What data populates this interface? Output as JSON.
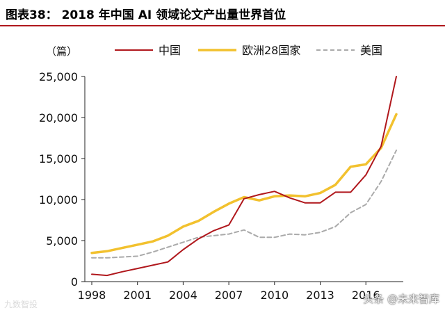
{
  "header": {
    "title": "图表38：   2018 年中国 AI 领域论文产出量世界首位"
  },
  "chart_data": {
    "type": "line",
    "title": "2018 年中国 AI 领域论文产出量世界首位",
    "ylabel": "（篇）",
    "xlabel": "",
    "ylim": [
      0,
      25000
    ],
    "xlim": [
      1998,
      2018
    ],
    "grid": false,
    "legend_position": "top",
    "yticks": [
      0,
      5000,
      10000,
      15000,
      20000,
      25000
    ],
    "ytick_labels": [
      "0",
      "5,000",
      "10,000",
      "15,000",
      "20,000",
      "25,000"
    ],
    "xticks": [
      1998,
      2001,
      2004,
      2007,
      2010,
      2013,
      2016
    ],
    "xtick_labels": [
      "1998",
      "2001",
      "2004",
      "2007",
      "2010",
      "2013",
      "2016"
    ],
    "x": [
      1998,
      1999,
      2000,
      2001,
      2002,
      2003,
      2004,
      2005,
      2006,
      2007,
      2008,
      2009,
      2010,
      2011,
      2012,
      2013,
      2014,
      2015,
      2016,
      2017,
      2018
    ],
    "series": [
      {
        "name": "中国",
        "color": "#b0171c",
        "style": "solid",
        "values": [
          900,
          750,
          1200,
          1600,
          2000,
          2400,
          3900,
          5200,
          6200,
          6900,
          10100,
          10600,
          11000,
          10200,
          9600,
          9600,
          10900,
          10900,
          13000,
          16500,
          25000
        ]
      },
      {
        "name": "欧洲28国家",
        "color": "#f2c12e",
        "style": "solid",
        "values": [
          3500,
          3700,
          4100,
          4500,
          4900,
          5600,
          6700,
          7400,
          8500,
          9500,
          10300,
          9900,
          10400,
          10500,
          10400,
          10800,
          11800,
          14000,
          14300,
          16300,
          20400
        ]
      },
      {
        "name": "美国",
        "color": "#aaaaaa",
        "style": "dashed",
        "values": [
          2900,
          2900,
          3000,
          3100,
          3600,
          4200,
          4800,
          5400,
          5600,
          5800,
          6300,
          5400,
          5400,
          5800,
          5700,
          6000,
          6700,
          8400,
          9400,
          12200,
          16000
        ]
      }
    ]
  },
  "watermarks": {
    "left": "九数智投",
    "right": "头条 @未来智库"
  }
}
